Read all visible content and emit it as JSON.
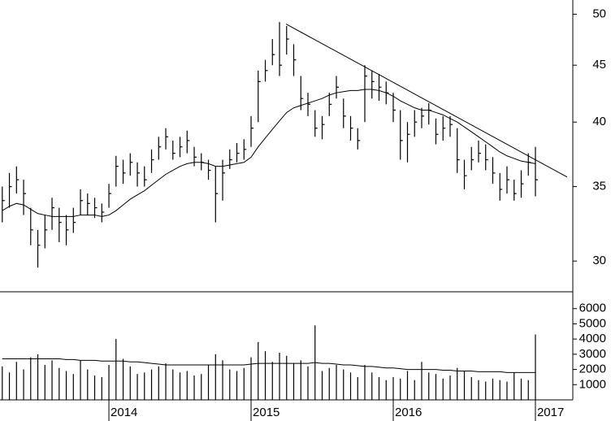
{
  "chart_data": [
    {
      "type": "ohlc",
      "log_scale": true,
      "color": "#000000",
      "x": [
        2013.25,
        2013.3,
        2013.35,
        2013.4,
        2013.45,
        2013.5,
        2013.55,
        2013.6,
        2013.65,
        2013.7,
        2013.75,
        2013.8,
        2013.85,
        2013.9,
        2013.95,
        2014.0,
        2014.05,
        2014.1,
        2014.15,
        2014.2,
        2014.25,
        2014.3,
        2014.35,
        2014.4,
        2014.45,
        2014.5,
        2014.55,
        2014.6,
        2014.65,
        2014.7,
        2014.75,
        2014.8,
        2014.85,
        2014.9,
        2014.95,
        2015.0,
        2015.05,
        2015.1,
        2015.15,
        2015.2,
        2015.25,
        2015.3,
        2015.35,
        2015.4,
        2015.45,
        2015.5,
        2015.55,
        2015.6,
        2015.65,
        2015.7,
        2015.75,
        2015.8,
        2015.85,
        2015.9,
        2015.95,
        2016.0,
        2016.05,
        2016.1,
        2016.15,
        2016.2,
        2016.25,
        2016.3,
        2016.35,
        2016.4,
        2016.45,
        2016.5,
        2016.55,
        2016.6,
        2016.65,
        2016.7,
        2016.75,
        2016.8,
        2016.85,
        2016.9,
        2016.95,
        2017.0
      ],
      "high": [
        35.0,
        36.0,
        36.5,
        35.5,
        33.5,
        32.0,
        33.0,
        34.2,
        33.5,
        33.0,
        33.5,
        34.8,
        34.5,
        34.2,
        33.8,
        35.2,
        37.3,
        37.0,
        37.5,
        36.8,
        36.5,
        37.8,
        38.8,
        39.5,
        38.5,
        38.8,
        39.3,
        38.0,
        37.5,
        37.0,
        36.5,
        37.0,
        37.8,
        38.3,
        38.6,
        40.5,
        44.5,
        45.5,
        47.5,
        49.2,
        48.8,
        47.0,
        44.0,
        42.5,
        41.0,
        40.5,
        42.5,
        44.0,
        42.0,
        40.5,
        39.5,
        45.0,
        44.5,
        44.2,
        43.5,
        42.5,
        41.0,
        40.0,
        41.0,
        41.2,
        41.6,
        40.3,
        40.5,
        40.5,
        39.5,
        37.0,
        38.0,
        38.5,
        38.2,
        37.2,
        36.0,
        36.5,
        35.5,
        36.2,
        37.5,
        38.0
      ],
      "low": [
        32.5,
        33.5,
        34.5,
        33.0,
        31.0,
        29.6,
        30.8,
        32.0,
        31.2,
        31.0,
        31.8,
        33.0,
        33.0,
        32.8,
        32.5,
        33.5,
        35.0,
        35.2,
        35.8,
        35.0,
        35.0,
        36.0,
        37.0,
        37.8,
        37.0,
        37.2,
        37.5,
        36.5,
        36.2,
        35.5,
        32.5,
        34.0,
        36.3,
        36.8,
        37.0,
        38.0,
        40.0,
        43.5,
        45.0,
        44.0,
        46.0,
        44.0,
        41.0,
        40.5,
        38.8,
        38.6,
        40.5,
        42.0,
        39.5,
        38.5,
        37.8,
        40.0,
        42.0,
        41.8,
        41.5,
        40.0,
        37.0,
        36.8,
        38.8,
        39.5,
        39.8,
        38.2,
        38.5,
        38.8,
        36.0,
        34.8,
        36.2,
        36.8,
        36.2,
        35.2,
        34.0,
        34.5,
        34.0,
        34.2,
        35.8,
        34.3
      ],
      "close": [
        34.0,
        35.0,
        35.5,
        34.5,
        32.0,
        31.0,
        32.0,
        33.5,
        32.5,
        32.0,
        32.5,
        34.0,
        33.8,
        33.5,
        33.2,
        34.5,
        36.5,
        36.0,
        36.8,
        36.0,
        35.5,
        37.0,
        38.0,
        38.8,
        37.5,
        38.0,
        38.5,
        37.2,
        36.8,
        36.2,
        34.5,
        36.0,
        37.0,
        37.5,
        37.8,
        39.5,
        43.5,
        44.5,
        46.0,
        45.0,
        47.5,
        45.5,
        42.0,
        41.5,
        39.5,
        39.8,
        41.5,
        43.0,
        40.5,
        39.5,
        38.5,
        44.0,
        43.5,
        43.0,
        42.5,
        41.0,
        38.5,
        39.0,
        40.0,
        40.5,
        41.0,
        39.0,
        39.5,
        39.8,
        37.0,
        35.8,
        37.0,
        37.5,
        37.0,
        36.0,
        34.8,
        35.5,
        34.5,
        35.2,
        36.8,
        35.5
      ],
      "moving_average": [
        33.3,
        33.6,
        33.8,
        33.7,
        33.4,
        33.1,
        33.0,
        32.9,
        32.9,
        32.9,
        32.9,
        33.0,
        33.0,
        33.0,
        32.9,
        33.0,
        33.3,
        33.7,
        34.1,
        34.4,
        34.7,
        35.1,
        35.5,
        35.9,
        36.2,
        36.5,
        36.7,
        36.8,
        36.8,
        36.7,
        36.5,
        36.5,
        36.6,
        36.7,
        36.8,
        37.2,
        38.0,
        38.7,
        39.4,
        40.1,
        40.8,
        41.2,
        41.4,
        41.6,
        41.8,
        42.0,
        42.3,
        42.5,
        42.6,
        42.7,
        42.7,
        42.8,
        42.8,
        42.7,
        42.5,
        42.2,
        41.8,
        41.5,
        41.2,
        41.0,
        41.0,
        40.8,
        40.6,
        40.3,
        40.0,
        39.6,
        39.2,
        38.8,
        38.4,
        38.0,
        37.6,
        37.3,
        37.1,
        36.9,
        36.8,
        36.7
      ],
      "trendline": {
        "x": [
          2015.246,
          2017.223
        ],
        "values": [
          49.0,
          35.7
        ]
      },
      "xlim": [
        2013.234,
        2017.263
      ],
      "ylim": [
        28.2,
        51.5
      ],
      "yticks": [
        30,
        35,
        40,
        45,
        50
      ]
    },
    {
      "type": "volume",
      "color": "#000000",
      "x": [
        2013.25,
        2013.3,
        2013.35,
        2013.4,
        2013.45,
        2013.5,
        2013.55,
        2013.6,
        2013.65,
        2013.7,
        2013.75,
        2013.8,
        2013.85,
        2013.9,
        2013.95,
        2014.0,
        2014.05,
        2014.1,
        2014.15,
        2014.2,
        2014.25,
        2014.3,
        2014.35,
        2014.4,
        2014.45,
        2014.5,
        2014.55,
        2014.6,
        2014.65,
        2014.7,
        2014.75,
        2014.8,
        2014.85,
        2014.9,
        2014.95,
        2015.0,
        2015.05,
        2015.1,
        2015.15,
        2015.2,
        2015.25,
        2015.3,
        2015.35,
        2015.4,
        2015.45,
        2015.5,
        2015.55,
        2015.6,
        2015.65,
        2015.7,
        2015.75,
        2015.8,
        2015.85,
        2015.9,
        2015.95,
        2016.0,
        2016.05,
        2016.1,
        2016.15,
        2016.2,
        2016.25,
        2016.3,
        2016.35,
        2016.4,
        2016.45,
        2016.5,
        2016.55,
        2016.6,
        2016.65,
        2016.7,
        2016.75,
        2016.8,
        2016.85,
        2016.9,
        2016.95,
        2017.0
      ],
      "values": [
        2200,
        1800,
        2500,
        2000,
        2800,
        3000,
        2300,
        2600,
        2100,
        1900,
        1700,
        2600,
        2000,
        1600,
        1500,
        2300,
        4000,
        2700,
        2200,
        1700,
        1800,
        2000,
        2200,
        2400,
        2000,
        1800,
        1900,
        1600,
        1700,
        2300,
        3000,
        2600,
        2000,
        1900,
        2100,
        2800,
        3800,
        3200,
        2500,
        3100,
        2900,
        2400,
        2600,
        2200,
        4900,
        1900,
        2100,
        2300,
        2000,
        1800,
        1500,
        2300,
        1800,
        1500,
        1300,
        1500,
        1400,
        1900,
        1300,
        2500,
        1800,
        1700,
        1400,
        1600,
        2100,
        1900,
        1500,
        1300,
        1200,
        1400,
        1300,
        1200,
        1800,
        1400,
        1300,
        4300
      ],
      "moving_average": [
        2700,
        2700,
        2700,
        2700,
        2700,
        2700,
        2700,
        2700,
        2700,
        2650,
        2650,
        2600,
        2600,
        2600,
        2550,
        2550,
        2550,
        2550,
        2500,
        2500,
        2450,
        2400,
        2350,
        2300,
        2300,
        2300,
        2300,
        2300,
        2300,
        2300,
        2300,
        2300,
        2300,
        2300,
        2300,
        2350,
        2400,
        2400,
        2400,
        2400,
        2400,
        2400,
        2400,
        2400,
        2450,
        2400,
        2400,
        2350,
        2300,
        2300,
        2250,
        2200,
        2200,
        2150,
        2100,
        2100,
        2050,
        2000,
        2000,
        2000,
        2000,
        2000,
        1950,
        1950,
        1900,
        1900,
        1900,
        1850,
        1850,
        1850,
        1850,
        1800,
        1800,
        1800,
        1800,
        1800
      ],
      "xlim": [
        2013.234,
        2017.263
      ],
      "ylim": [
        0,
        7000
      ],
      "yticks": [
        1000,
        2000,
        3000,
        4000,
        5000,
        6000
      ],
      "xticks": [
        2014,
        2015,
        2016,
        2017
      ]
    }
  ]
}
